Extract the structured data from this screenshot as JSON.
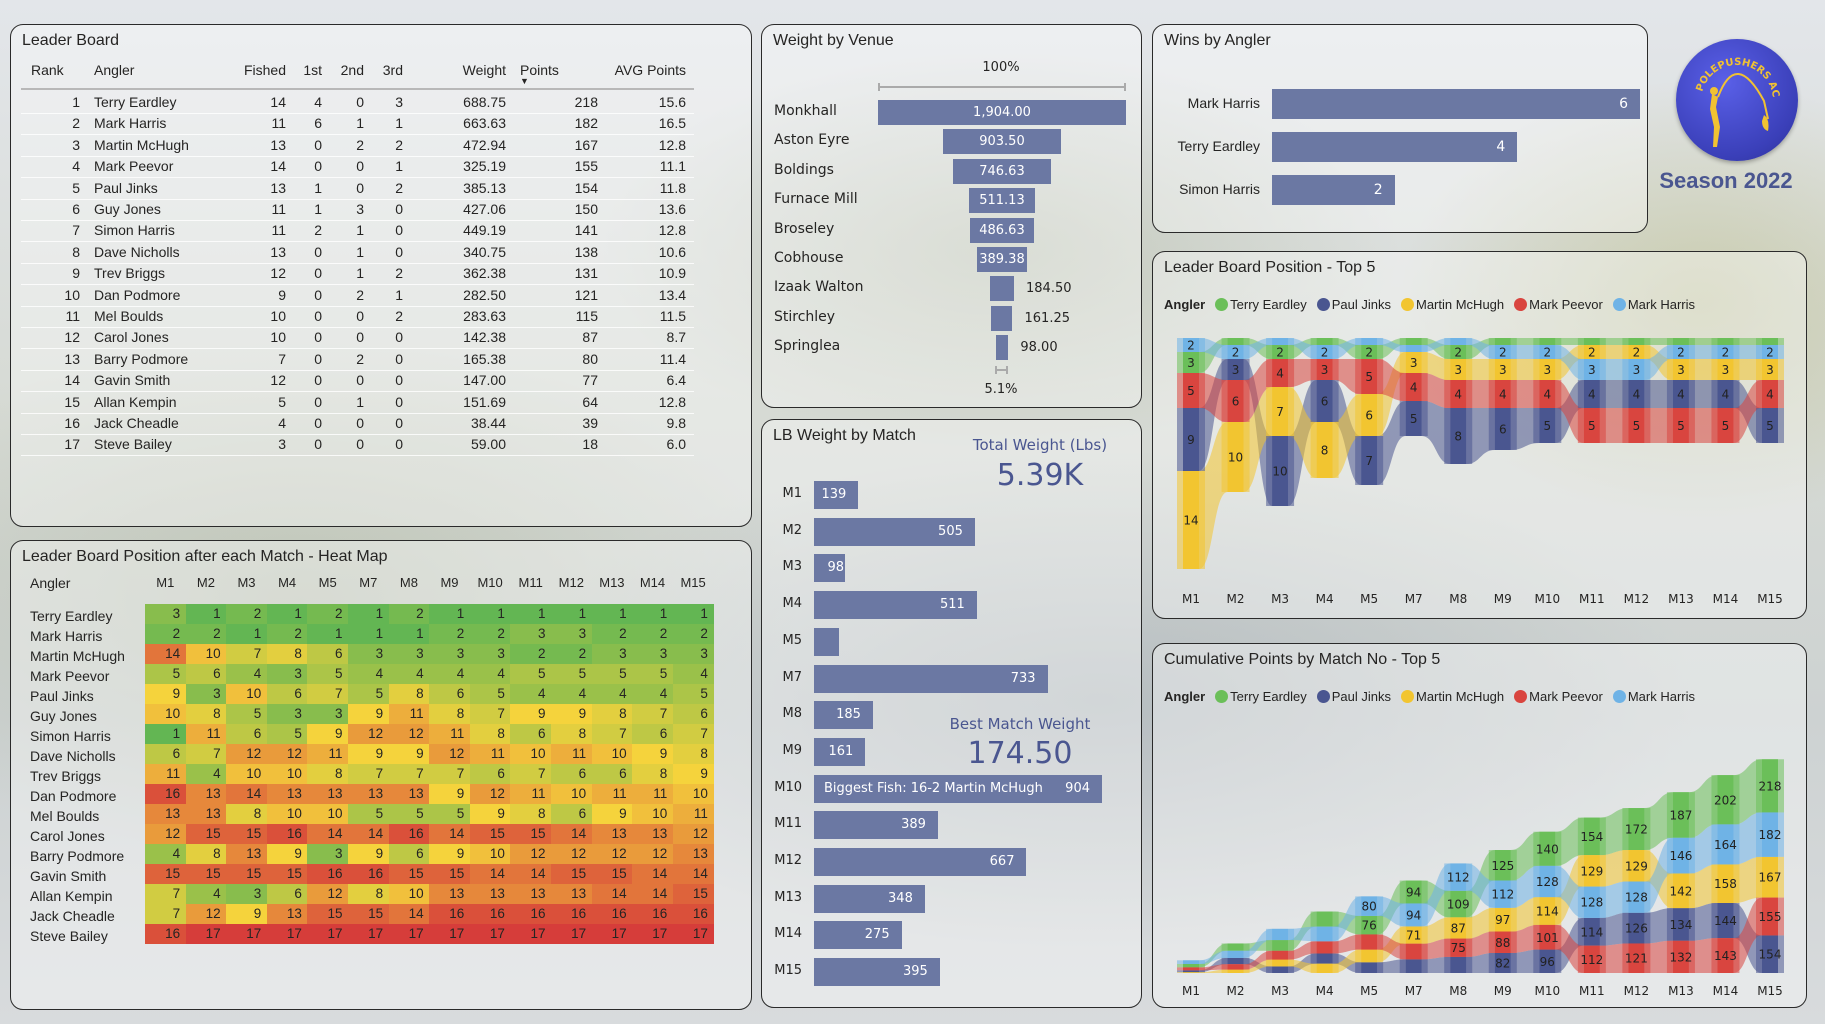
{
  "leaderboard": {
    "title": "Leader Board",
    "columns": [
      "Rank",
      "Angler",
      "Fished",
      "1st",
      "2nd",
      "3rd",
      "Weight",
      "Points",
      "AVG Points"
    ],
    "sort_indicator": "▼",
    "rows": [
      [
        "1",
        "Terry Eardley",
        "14",
        "4",
        "0",
        "3",
        "688.75",
        "218",
        "15.6"
      ],
      [
        "2",
        "Mark Harris",
        "11",
        "6",
        "1",
        "1",
        "663.63",
        "182",
        "16.5"
      ],
      [
        "3",
        "Martin McHugh",
        "13",
        "0",
        "2",
        "2",
        "472.94",
        "167",
        "12.8"
      ],
      [
        "4",
        "Mark Peevor",
        "14",
        "0",
        "0",
        "1",
        "325.19",
        "155",
        "11.1"
      ],
      [
        "5",
        "Paul Jinks",
        "13",
        "1",
        "0",
        "2",
        "385.13",
        "154",
        "11.8"
      ],
      [
        "6",
        "Guy Jones",
        "11",
        "1",
        "3",
        "0",
        "427.06",
        "150",
        "13.6"
      ],
      [
        "7",
        "Simon Harris",
        "11",
        "2",
        "1",
        "0",
        "449.19",
        "141",
        "12.8"
      ],
      [
        "8",
        "Dave Nicholls",
        "13",
        "0",
        "1",
        "0",
        "340.75",
        "138",
        "10.6"
      ],
      [
        "9",
        "Trev Briggs",
        "12",
        "0",
        "1",
        "2",
        "362.38",
        "131",
        "10.9"
      ],
      [
        "10",
        "Dan Podmore",
        "9",
        "0",
        "2",
        "1",
        "282.50",
        "121",
        "13.4"
      ],
      [
        "11",
        "Mel Boulds",
        "10",
        "0",
        "0",
        "2",
        "283.63",
        "115",
        "11.5"
      ],
      [
        "12",
        "Carol Jones",
        "10",
        "0",
        "0",
        "0",
        "142.38",
        "87",
        "8.7"
      ],
      [
        "13",
        "Barry Podmore",
        "7",
        "0",
        "2",
        "0",
        "165.38",
        "80",
        "11.4"
      ],
      [
        "14",
        "Gavin Smith",
        "12",
        "0",
        "0",
        "0",
        "147.00",
        "77",
        "6.4"
      ],
      [
        "15",
        "Allan Kempin",
        "5",
        "0",
        "1",
        "0",
        "151.69",
        "64",
        "12.8"
      ],
      [
        "16",
        "Jack Cheadle",
        "4",
        "0",
        "0",
        "0",
        "38.44",
        "39",
        "9.8"
      ],
      [
        "17",
        "Steve Bailey",
        "3",
        "0",
        "0",
        "0",
        "59.00",
        "18",
        "6.0"
      ]
    ]
  },
  "heatmap": {
    "title": "Leader Board Position after each Match - Heat Map",
    "angler_header": "Angler",
    "matches": [
      "M1",
      "M2",
      "M3",
      "M4",
      "M5",
      "M7",
      "M8",
      "M9",
      "M10",
      "M11",
      "M12",
      "M13",
      "M14",
      "M15"
    ],
    "colors": {
      "best": "#63b653",
      "mid": "#f5d33c",
      "worst": "#d63d3a"
    },
    "rows": [
      {
        "angler": "Terry Eardley",
        "positions": [
          3,
          1,
          2,
          1,
          2,
          1,
          2,
          1,
          1,
          1,
          1,
          1,
          1,
          1
        ]
      },
      {
        "angler": "Mark Harris",
        "positions": [
          2,
          2,
          1,
          2,
          1,
          1,
          1,
          2,
          2,
          3,
          3,
          2,
          2,
          2
        ]
      },
      {
        "angler": "Martin McHugh",
        "positions": [
          14,
          10,
          7,
          8,
          6,
          3,
          3,
          3,
          3,
          2,
          2,
          3,
          3,
          3
        ]
      },
      {
        "angler": "Mark Peevor",
        "positions": [
          5,
          6,
          4,
          3,
          5,
          4,
          4,
          4,
          4,
          5,
          5,
          5,
          5,
          4
        ]
      },
      {
        "angler": "Paul Jinks",
        "positions": [
          9,
          3,
          10,
          6,
          7,
          5,
          8,
          6,
          5,
          4,
          4,
          4,
          4,
          5
        ]
      },
      {
        "angler": "Guy Jones",
        "positions": [
          10,
          8,
          5,
          3,
          3,
          9,
          11,
          8,
          7,
          9,
          9,
          8,
          7,
          6
        ]
      },
      {
        "angler": "Simon Harris",
        "positions": [
          1,
          11,
          6,
          5,
          9,
          12,
          12,
          11,
          8,
          6,
          8,
          7,
          6,
          7
        ]
      },
      {
        "angler": "Dave Nicholls",
        "positions": [
          6,
          7,
          12,
          12,
          11,
          9,
          9,
          12,
          11,
          10,
          11,
          10,
          9,
          8
        ]
      },
      {
        "angler": "Trev Briggs",
        "positions": [
          11,
          4,
          10,
          10,
          8,
          7,
          7,
          7,
          6,
          7,
          6,
          6,
          8,
          9
        ]
      },
      {
        "angler": "Dan Podmore",
        "positions": [
          16,
          13,
          14,
          13,
          13,
          13,
          13,
          9,
          12,
          11,
          10,
          11,
          11,
          10
        ]
      },
      {
        "angler": "Mel Boulds",
        "positions": [
          13,
          13,
          8,
          10,
          10,
          5,
          5,
          5,
          9,
          8,
          6,
          9,
          10,
          11
        ]
      },
      {
        "angler": "Carol Jones",
        "positions": [
          12,
          15,
          15,
          16,
          14,
          14,
          16,
          14,
          15,
          15,
          14,
          13,
          13,
          12
        ]
      },
      {
        "angler": "Barry Podmore",
        "positions": [
          4,
          8,
          13,
          9,
          3,
          9,
          6,
          9,
          10,
          12,
          12,
          12,
          12,
          13
        ]
      },
      {
        "angler": "Gavin Smith",
        "positions": [
          15,
          15,
          15,
          15,
          16,
          16,
          15,
          15,
          14,
          14,
          15,
          15,
          14,
          14
        ]
      },
      {
        "angler": "Allan Kempin",
        "positions": [
          7,
          4,
          3,
          6,
          12,
          8,
          10,
          13,
          13,
          13,
          13,
          14,
          14,
          15
        ]
      },
      {
        "angler": "Jack Cheadle",
        "positions": [
          7,
          12,
          9,
          13,
          15,
          15,
          14,
          16,
          16,
          16,
          16,
          16,
          16,
          16
        ]
      },
      {
        "angler": "Steve Bailey",
        "positions": [
          16,
          17,
          17,
          17,
          17,
          17,
          17,
          17,
          17,
          17,
          17,
          17,
          17,
          17
        ]
      }
    ]
  },
  "venue": {
    "title": "Weight by Venue",
    "top_pct": "100%",
    "bottom_pct": "5.1%",
    "items": [
      {
        "venue": "Monkhall",
        "value": 1904.0,
        "label": "1,904.00"
      },
      {
        "venue": "Aston Eyre",
        "value": 903.5,
        "label": "903.50"
      },
      {
        "venue": "Boldings",
        "value": 746.63,
        "label": "746.63"
      },
      {
        "venue": "Furnace Mill",
        "value": 511.13,
        "label": "511.13"
      },
      {
        "venue": "Broseley",
        "value": 486.63,
        "label": "486.63"
      },
      {
        "venue": "Cobhouse",
        "value": 389.38,
        "label": "389.38"
      },
      {
        "venue": "Izaak Walton",
        "value": 184.5,
        "label": "184.50"
      },
      {
        "venue": "Stirchley",
        "value": 161.25,
        "label": "161.25"
      },
      {
        "venue": "Springlea",
        "value": 98.0,
        "label": "98.00"
      }
    ]
  },
  "match_weight": {
    "title": "LB Weight by Match",
    "total_label": "Total Weight (Lbs)",
    "total_value": "5.39K",
    "best_label": "Best Match Weight",
    "best_value": "174.50",
    "annotation": "Biggest Fish: 16-2 Martin McHugh",
    "bars": [
      {
        "match": "M1",
        "value": 139,
        "label": "139"
      },
      {
        "match": "M2",
        "value": 505,
        "label": "505"
      },
      {
        "match": "M3",
        "value": 98,
        "label": "98"
      },
      {
        "match": "M4",
        "value": 511,
        "label": "511"
      },
      {
        "match": "M5",
        "value": 78,
        "label": ""
      },
      {
        "match": "M7",
        "value": 733,
        "label": "733"
      },
      {
        "match": "M8",
        "value": 185,
        "label": "185"
      },
      {
        "match": "M9",
        "value": 161,
        "label": "161"
      },
      {
        "match": "M10",
        "value": 904,
        "label": "904"
      },
      {
        "match": "M11",
        "value": 389,
        "label": "389"
      },
      {
        "match": "M12",
        "value": 667,
        "label": "667"
      },
      {
        "match": "M13",
        "value": 348,
        "label": "348"
      },
      {
        "match": "M14",
        "value": 275,
        "label": "275"
      },
      {
        "match": "M15",
        "value": 395,
        "label": "395"
      }
    ]
  },
  "wins": {
    "title": "Wins by Angler",
    "bars": [
      {
        "angler": "Mark Harris",
        "wins": 6
      },
      {
        "angler": "Terry Eardley",
        "wins": 4
      },
      {
        "angler": "Simon Harris",
        "wins": 2
      }
    ]
  },
  "logo": {
    "text": "POLEPUSHERS AC",
    "season": "Season 2022",
    "color": "#4a4fd0",
    "accent": "#f1c232"
  },
  "position_chart": {
    "title": "Leader Board Position - Top 5",
    "legend_title": "Angler",
    "matches": [
      "M1",
      "M2",
      "M3",
      "M4",
      "M5",
      "M7",
      "M8",
      "M9",
      "M10",
      "M11",
      "M12",
      "M13",
      "M14",
      "M15"
    ],
    "series": [
      {
        "name": "Terry Eardley",
        "color": "#6bbf59",
        "values": [
          3,
          1,
          2,
          1,
          2,
          1,
          2,
          1,
          1,
          1,
          1,
          1,
          1,
          1
        ]
      },
      {
        "name": "Paul Jinks",
        "color": "#4a5690",
        "values": [
          9,
          3,
          10,
          6,
          7,
          5,
          8,
          6,
          5,
          4,
          4,
          4,
          4,
          5
        ]
      },
      {
        "name": "Martin McHugh",
        "color": "#f2c530",
        "values": [
          14,
          10,
          7,
          8,
          6,
          3,
          3,
          3,
          3,
          2,
          2,
          3,
          3,
          3
        ]
      },
      {
        "name": "Mark Peevor",
        "color": "#d9453f",
        "values": [
          5,
          6,
          4,
          3,
          5,
          4,
          4,
          4,
          4,
          5,
          5,
          5,
          5,
          4
        ]
      },
      {
        "name": "Mark Harris",
        "color": "#6fb3e6",
        "values": [
          2,
          2,
          1,
          2,
          1,
          1,
          1,
          2,
          2,
          3,
          3,
          2,
          2,
          2
        ]
      }
    ]
  },
  "cumulative_chart": {
    "title": "Cumulative Points by Match No - Top 5",
    "legend_title": "Angler",
    "matches": [
      "M1",
      "M2",
      "M3",
      "M4",
      "M5",
      "M7",
      "M8",
      "M9",
      "M10",
      "M11",
      "M12",
      "M13",
      "M14",
      "M15"
    ],
    "series": [
      {
        "name": "Terry Eardley",
        "color": "#6bbf59",
        "values": [
          14,
          30,
          44,
          62,
          76,
          94,
          109,
          125,
          140,
          154,
          172,
          187,
          202,
          218
        ]
      },
      {
        "name": "Paul Jinks",
        "color": "#4a5690",
        "values": [
          8,
          26,
          27,
          42,
          44,
          56,
          66,
          82,
          96,
          114,
          126,
          134,
          144,
          154
        ]
      },
      {
        "name": "Martin McHugh",
        "color": "#f2c530",
        "values": [
          3,
          14,
          28,
          38,
          52,
          71,
          87,
          97,
          114,
          129,
          129,
          142,
          158,
          167
        ]
      },
      {
        "name": "Mark Peevor",
        "color": "#d9453f",
        "values": [
          12,
          22,
          36,
          50,
          62,
          64,
          75,
          88,
          101,
          112,
          121,
          132,
          143,
          155
        ]
      },
      {
        "name": "Mark Harris",
        "color": "#6fb3e6",
        "values": [
          15,
          29,
          46,
          60,
          80,
          94,
          112,
          112,
          128,
          128,
          128,
          146,
          164,
          182
        ]
      }
    ]
  }
}
